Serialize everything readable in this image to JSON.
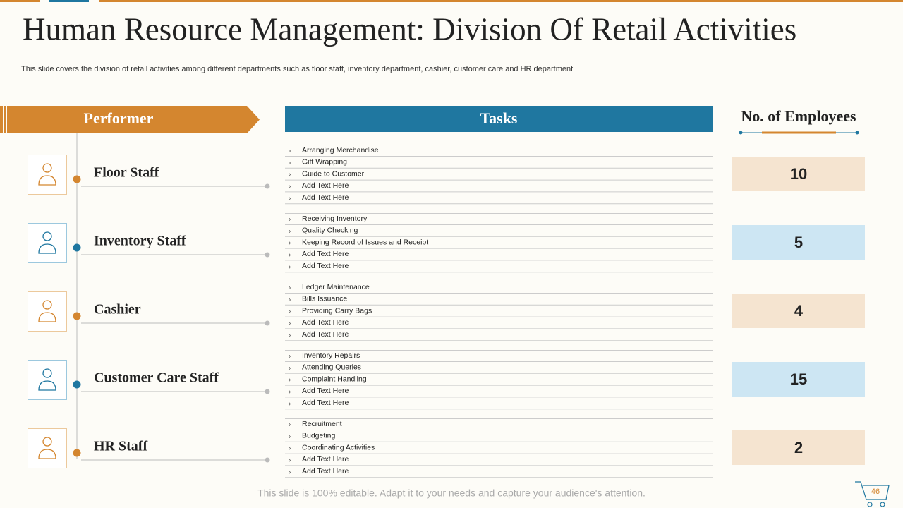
{
  "title": "Human Resource Management: Division Of Retail Activities",
  "subtitle": "This slide covers the division of retail activities among different departments such as floor staff, inventory department, cashier, customer care and HR department",
  "headers": {
    "performer": "Performer",
    "tasks": "Tasks",
    "employees": "No. of Employees"
  },
  "rows": [
    {
      "name": "Floor Staff",
      "tasks": [
        "Arranging Merchandise",
        "Gift Wrapping",
        "Guide to Customer",
        "Add Text Here",
        "Add Text Here"
      ],
      "employees": 10
    },
    {
      "name": "Inventory Staff",
      "tasks": [
        "Receiving Inventory",
        "Quality Checking",
        "Keeping Record of Issues and Receipt",
        "Add Text Here",
        "Add Text Here"
      ],
      "employees": 5
    },
    {
      "name": "Cashier",
      "tasks": [
        "Ledger Maintenance",
        "Bills Issuance",
        "Providing Carry Bags",
        "Add Text Here",
        "Add Text Here"
      ],
      "employees": 4
    },
    {
      "name": "Customer Care Staff",
      "tasks": [
        "Inventory Repairs",
        "Attending Queries",
        "Complaint  Handling",
        "Add Text Here",
        "Add Text Here"
      ],
      "employees": 15
    },
    {
      "name": "HR Staff",
      "tasks": [
        "Recruitment",
        "Budgeting",
        "Coordinating Activities",
        "Add Text Here",
        "Add Text Here"
      ],
      "employees": 2
    }
  ],
  "footer": "This slide is 100% editable. Adapt it to your needs and capture your audience's attention.",
  "page_number": "46"
}
